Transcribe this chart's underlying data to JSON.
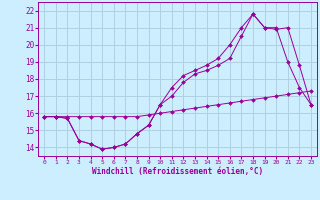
{
  "xlabel": "Windchill (Refroidissement éolien,°C)",
  "bg_color": "#cceeff",
  "grid_color": "#aaccdd",
  "line_color": "#990099",
  "xlim": [
    -0.5,
    23.5
  ],
  "ylim": [
    13.5,
    22.5
  ],
  "yticks": [
    14,
    15,
    16,
    17,
    18,
    19,
    20,
    21,
    22
  ],
  "xticks": [
    0,
    1,
    2,
    3,
    4,
    5,
    6,
    7,
    8,
    9,
    10,
    11,
    12,
    13,
    14,
    15,
    16,
    17,
    18,
    19,
    20,
    21,
    22,
    23
  ],
  "series1_x": [
    0,
    1,
    2,
    3,
    4,
    5,
    6,
    7,
    8,
    9,
    10,
    11,
    12,
    13,
    14,
    15,
    16,
    17,
    18,
    19,
    20,
    21,
    22,
    23
  ],
  "series1_y": [
    15.8,
    15.8,
    15.8,
    15.8,
    15.8,
    15.8,
    15.8,
    15.8,
    15.8,
    15.9,
    16.0,
    16.1,
    16.2,
    16.3,
    16.4,
    16.5,
    16.6,
    16.7,
    16.8,
    16.9,
    17.0,
    17.1,
    17.2,
    17.3
  ],
  "series2_x": [
    0,
    1,
    2,
    3,
    4,
    5,
    6,
    7,
    8,
    9,
    10,
    11,
    12,
    13,
    14,
    15,
    16,
    17,
    18,
    19,
    20,
    21,
    22,
    23
  ],
  "series2_y": [
    15.8,
    15.8,
    15.7,
    14.4,
    14.2,
    13.9,
    14.0,
    14.2,
    14.8,
    15.3,
    16.5,
    17.5,
    18.2,
    18.5,
    18.8,
    19.2,
    20.0,
    21.0,
    21.8,
    21.0,
    21.0,
    19.0,
    17.5,
    16.5
  ],
  "series3_x": [
    0,
    1,
    2,
    3,
    4,
    5,
    6,
    7,
    8,
    9,
    10,
    11,
    12,
    13,
    14,
    15,
    16,
    17,
    18,
    19,
    20,
    21,
    22,
    23
  ],
  "series3_y": [
    15.8,
    15.8,
    15.7,
    14.4,
    14.2,
    13.9,
    14.0,
    14.2,
    14.8,
    15.3,
    16.5,
    17.0,
    17.8,
    18.3,
    18.5,
    18.8,
    19.2,
    20.5,
    21.8,
    21.0,
    20.9,
    21.0,
    18.8,
    16.5
  ]
}
